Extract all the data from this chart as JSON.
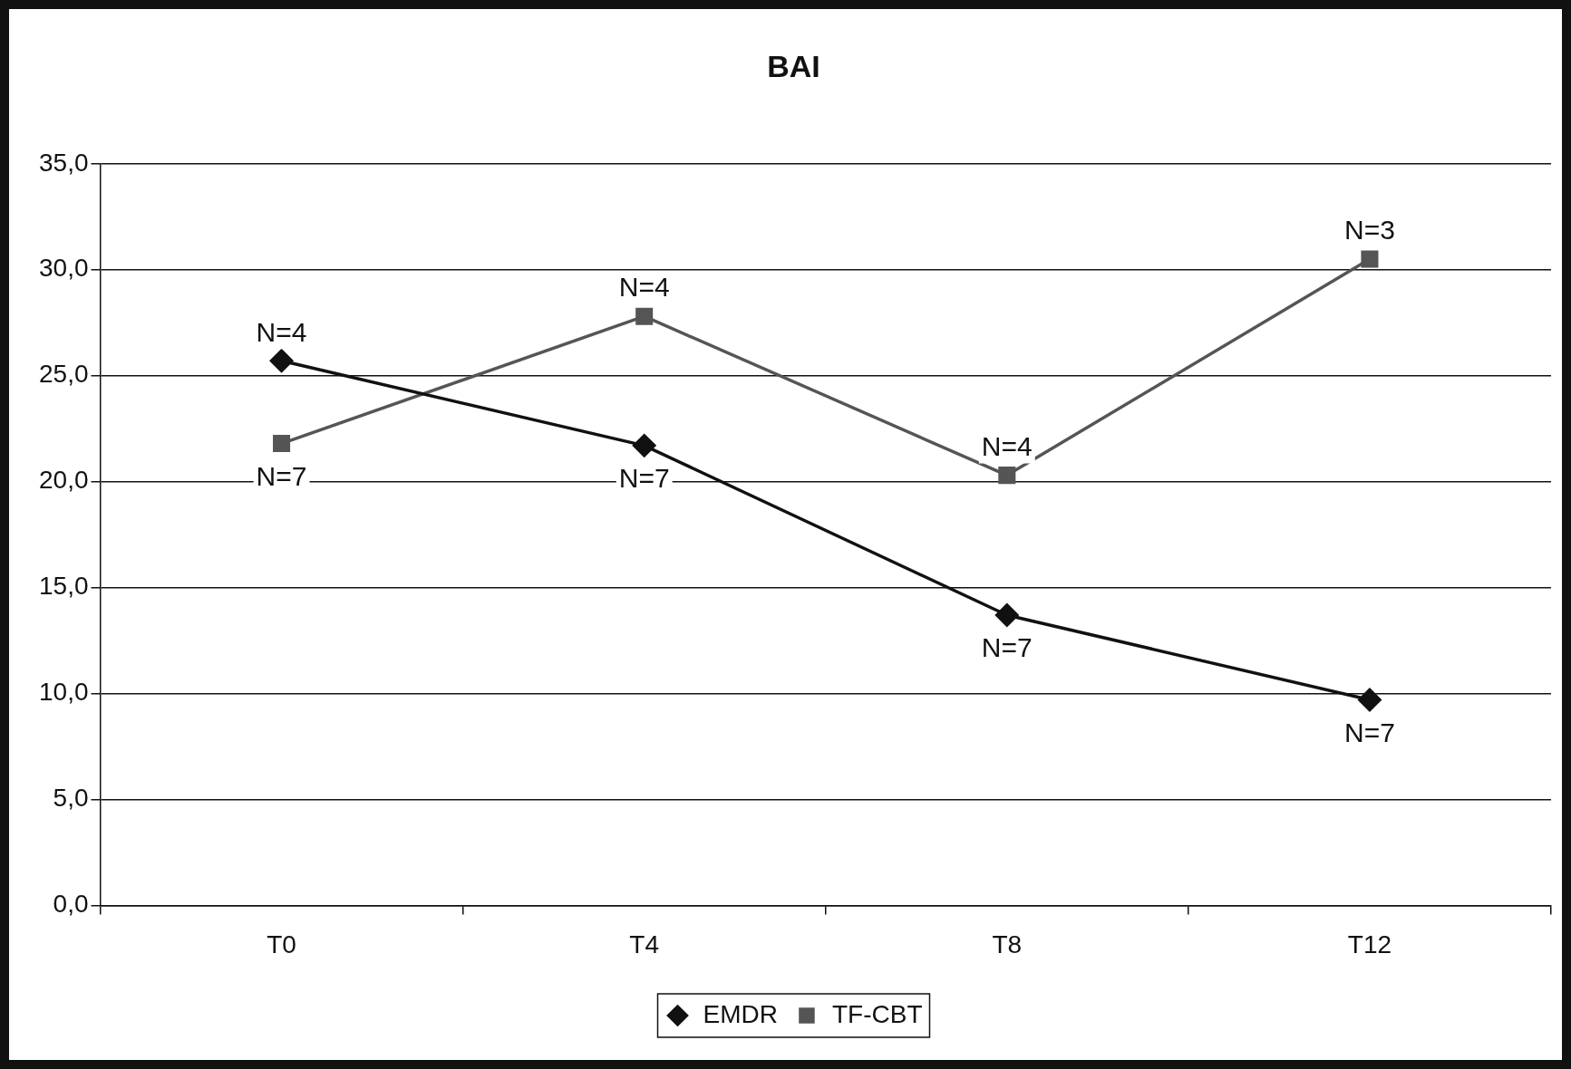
{
  "chart_data": {
    "type": "line",
    "title": "BAI",
    "categories": [
      "T0",
      "T4",
      "T8",
      "T12"
    ],
    "series": [
      {
        "name": "EMDR",
        "color": "#111111",
        "marker": "diamond",
        "values": [
          25.7,
          21.7,
          13.7,
          9.7
        ]
      },
      {
        "name": "TF-CBT",
        "color": "#555555",
        "marker": "square",
        "values": [
          21.8,
          27.8,
          20.3,
          30.5
        ]
      }
    ],
    "ylim": [
      0,
      35
    ],
    "yticks": [
      {
        "value": 0,
        "label": "0,0"
      },
      {
        "value": 5,
        "label": "5,0"
      },
      {
        "value": 10,
        "label": "10,0"
      },
      {
        "value": 15,
        "label": "15,0"
      },
      {
        "value": 20,
        "label": "20,0"
      },
      {
        "value": 25,
        "label": "25,0"
      },
      {
        "value": 30,
        "label": "30,0"
      },
      {
        "value": 35,
        "label": "35,0"
      }
    ],
    "grid": "y",
    "legend": "bottom",
    "line_style": "solid",
    "annotations": [
      {
        "text": "N=4",
        "x": "T0",
        "y": 25.7
      },
      {
        "text": "N=7",
        "x": "T0",
        "y": 21.8
      },
      {
        "text": "N=4",
        "x": "T4",
        "y": 27.8
      },
      {
        "text": "N=7",
        "x": "T4",
        "y": 21.7
      },
      {
        "text": "N=4",
        "x": "T8",
        "y": 20.3
      },
      {
        "text": "N=7",
        "x": "T8",
        "y": 13.7
      },
      {
        "text": "N=3",
        "x": "T12",
        "y": 30.5
      },
      {
        "text": "N=7",
        "x": "T12",
        "y": 9.7
      }
    ]
  }
}
